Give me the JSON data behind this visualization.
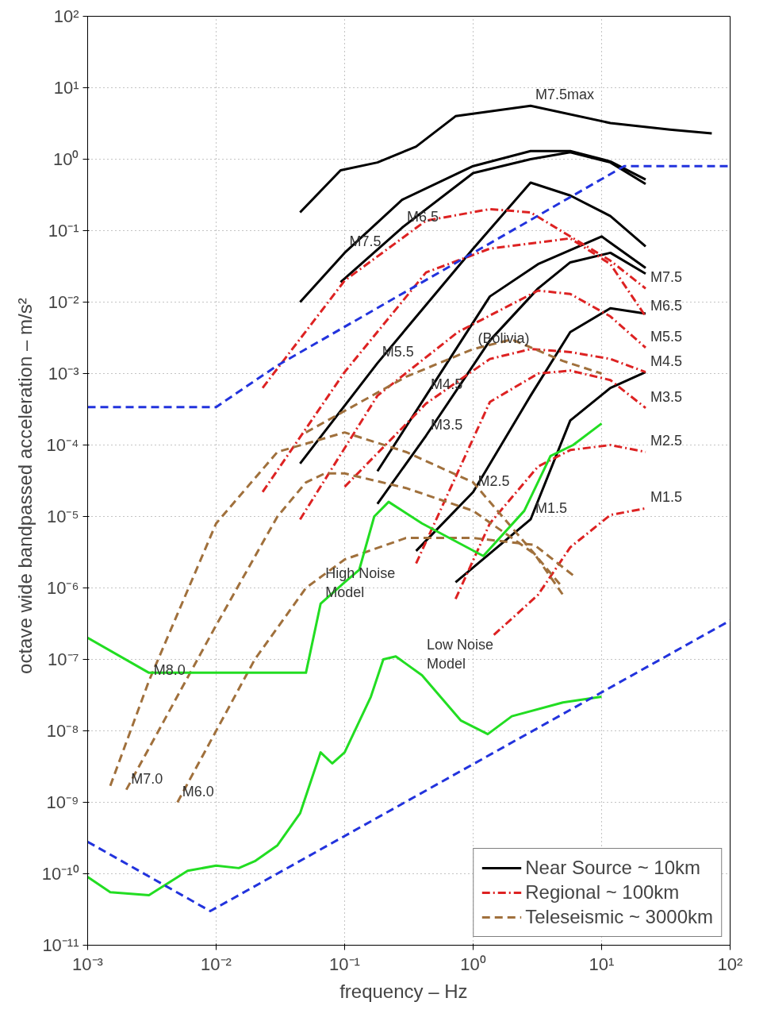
{
  "chart_data": {
    "type": "line",
    "xlabel": "frequency  –  Hz",
    "ylabel": "octave wide bandpassed acceleration  –  m/s²",
    "log": "xy",
    "grid": true,
    "legend": "bottom right",
    "marker": "none",
    "xlim": [
      0.001,
      100
    ],
    "ylim": [
      1e-11,
      100
    ],
    "xticks": [
      {
        "value": 0.001,
        "label": "10⁻³"
      },
      {
        "value": 0.01,
        "label": "10⁻²"
      },
      {
        "value": 0.1,
        "label": "10⁻¹"
      },
      {
        "value": 1,
        "label": "10⁰"
      },
      {
        "value": 10,
        "label": "10¹"
      },
      {
        "value": 100,
        "label": "10²"
      }
    ],
    "yticks": [
      {
        "value": 1e-11,
        "label": "10⁻¹¹"
      },
      {
        "value": 1e-10,
        "label": "10⁻¹⁰"
      },
      {
        "value": 1e-09,
        "label": "10⁻⁹"
      },
      {
        "value": 1e-08,
        "label": "10⁻⁸"
      },
      {
        "value": 1e-07,
        "label": "10⁻⁷"
      },
      {
        "value": 1e-06,
        "label": "10⁻⁶"
      },
      {
        "value": 1e-05,
        "label": "10⁻⁵"
      },
      {
        "value": 0.0001,
        "label": "10⁻⁴"
      },
      {
        "value": 0.001,
        "label": "10⁻³"
      },
      {
        "value": 0.01,
        "label": "10⁻²"
      },
      {
        "value": 0.1,
        "label": "10⁻¹"
      },
      {
        "value": 1,
        "label": "10⁰"
      },
      {
        "value": 10,
        "label": "10¹"
      },
      {
        "value": 100,
        "label": "10²"
      }
    ],
    "series": [
      {
        "name": "Near Source ~ 10km",
        "color": "#000000",
        "line_style": "solid",
        "x": [
          0.045,
          0.093,
          0.18,
          0.36,
          0.73,
          2.8,
          11.7,
          34,
          72
        ],
        "values": [
          0.18,
          0.7,
          0.9,
          1.5,
          4,
          5.6,
          3.2,
          2.6,
          2.3
        ]
      },
      {
        "color": "#000000",
        "line_style": "solid",
        "x": [
          0.045,
          0.1,
          0.28,
          1.0,
          2.8,
          5.7,
          11.7,
          22
        ],
        "values": [
          0.01,
          0.049,
          0.27,
          0.8,
          1.3,
          1.3,
          0.93,
          0.52
        ]
      },
      {
        "color": "#000000",
        "line_style": "solid",
        "x": [
          0.093,
          0.28,
          1.0,
          2.8,
          5.7,
          11.7,
          22
        ],
        "values": [
          0.019,
          0.11,
          0.64,
          1.0,
          1.25,
          0.9,
          0.45
        ]
      },
      {
        "color": "#000000",
        "line_style": "solid",
        "x": [
          0.045,
          0.18,
          1.0,
          2.8,
          5.7,
          11.7,
          22
        ],
        "values": [
          5.5e-05,
          0.0014,
          0.056,
          0.47,
          0.31,
          0.16,
          0.06
        ]
      },
      {
        "color": "#000000",
        "line_style": "solid",
        "x": [
          0.18,
          0.43,
          1.35,
          3.2,
          10,
          22
        ],
        "values": [
          4.3e-05,
          0.00049,
          0.012,
          0.034,
          0.083,
          0.03
        ]
      },
      {
        "color": "#000000",
        "line_style": "solid",
        "x": [
          0.18,
          0.43,
          1.35,
          3.2,
          5.7,
          11.7,
          22
        ],
        "values": [
          1.5e-05,
          0.000135,
          0.0029,
          0.0155,
          0.036,
          0.049,
          0.025
        ]
      },
      {
        "color": "#000000",
        "line_style": "solid",
        "x": [
          0.36,
          1.0,
          2.8,
          5.7,
          11.7,
          22
        ],
        "values": [
          3.3e-06,
          2.2e-05,
          0.00049,
          0.0038,
          0.0082,
          0.0069
        ]
      },
      {
        "color": "#000000",
        "line_style": "solid",
        "x": [
          0.73,
          2.8,
          5.7,
          11.7,
          22
        ],
        "values": [
          1.2e-06,
          9.1e-06,
          0.00022,
          0.00063,
          0.00105
        ]
      },
      {
        "name": "Regional ~ 100km",
        "color": "#dd2222",
        "line_style": "dashdot",
        "x": [
          0.023,
          0.1,
          0.43,
          1.35,
          2.8,
          5.7,
          11.7,
          22
        ],
        "values": [
          0.00063,
          0.02,
          0.138,
          0.2,
          0.18,
          0.083,
          0.038,
          0.0155
        ]
      },
      {
        "color": "#dd2222",
        "line_style": "dashdot",
        "x": [
          0.023,
          0.1,
          0.43,
          1.35,
          5.7,
          11.7,
          22
        ],
        "values": [
          2.2e-05,
          0.00105,
          0.026,
          0.056,
          0.078,
          0.034,
          0.0063
        ]
      },
      {
        "color": "#dd2222",
        "line_style": "dashdot",
        "x": [
          0.045,
          0.18,
          0.76,
          3.2,
          5.7,
          11.7,
          22
        ],
        "values": [
          9.1e-06,
          0.00049,
          0.0038,
          0.0145,
          0.013,
          0.0063,
          0.0023
        ]
      },
      {
        "color": "#dd2222",
        "line_style": "dashdot",
        "x": [
          0.1,
          0.43,
          1.35,
          2.8,
          5.7,
          11.7,
          22
        ],
        "values": [
          2.6e-05,
          0.00038,
          0.0016,
          0.0022,
          0.002,
          0.0016,
          0.00105
        ]
      },
      {
        "color": "#dd2222",
        "line_style": "dashdot",
        "x": [
          0.36,
          1.35,
          3.2,
          5.7,
          11.7,
          22
        ],
        "values": [
          2.2e-06,
          0.0004,
          0.001,
          0.0011,
          0.00081,
          0.00033
        ]
      },
      {
        "color": "#dd2222",
        "line_style": "dashdot",
        "x": [
          0.73,
          1.35,
          3.2,
          5.7,
          11.7,
          22
        ],
        "values": [
          7e-07,
          8e-06,
          5e-05,
          8.5e-05,
          0.0001,
          8e-05
        ]
      },
      {
        "color": "#dd2222",
        "line_style": "dashdot",
        "x": [
          1.45,
          3.2,
          5.7,
          11.7,
          22
        ],
        "values": [
          2.2e-07,
          8e-07,
          3.7e-06,
          1.05e-05,
          1.3e-05
        ]
      },
      {
        "name": "Teleseismic ~ 3000km",
        "color": "#a0703c",
        "line_style": "dashed",
        "x": [
          0.0015,
          0.003,
          0.01,
          0.03,
          0.1,
          0.3,
          1,
          3,
          5
        ],
        "values": [
          1.7e-09,
          5e-08,
          8e-06,
          8e-05,
          0.00015,
          8e-05,
          3e-05,
          3e-06,
          1e-06
        ]
      },
      {
        "color": "#a0703c",
        "line_style": "dashed",
        "x": [
          0.002,
          0.01,
          0.03,
          0.05,
          0.07,
          0.1,
          0.3,
          1,
          3,
          5
        ],
        "values": [
          1.5e-09,
          3e-07,
          1e-05,
          3e-05,
          4e-05,
          4e-05,
          2.5e-05,
          1.2e-05,
          3e-06,
          8e-07
        ]
      },
      {
        "color": "#a0703c",
        "line_style": "dashed",
        "x": [
          0.005,
          0.02,
          0.05,
          0.1,
          0.3,
          1,
          3,
          6
        ],
        "values": [
          1e-09,
          1e-07,
          1e-06,
          2.5e-06,
          5e-06,
          5e-06,
          4e-06,
          1.5e-06
        ]
      },
      {
        "color": "#a0703c",
        "line_style": "dashed",
        "x": [
          0.05,
          0.1,
          0.3,
          1,
          2,
          5,
          10
        ],
        "values": [
          0.00015,
          0.0003,
          0.0009,
          0.0022,
          0.003,
          0.0015,
          0.001
        ]
      },
      {
        "color": "#22dd22",
        "line_style": "solid",
        "x": [
          0.001,
          0.003,
          0.05,
          0.065,
          0.1,
          0.13,
          0.17,
          0.22,
          0.4,
          1.2,
          2.5,
          4,
          6,
          10
        ],
        "values": [
          2e-07,
          6.5e-08,
          6.5e-08,
          6e-07,
          1.2e-06,
          1.8e-06,
          1e-05,
          1.6e-05,
          8e-06,
          2.8e-06,
          1.2e-05,
          7e-05,
          0.0001,
          0.0002
        ]
      },
      {
        "color": "#22dd22",
        "line_style": "solid",
        "x": [
          0.001,
          0.0015,
          0.003,
          0.006,
          0.01,
          0.015,
          0.02,
          0.03,
          0.045,
          0.065,
          0.08,
          0.1,
          0.16,
          0.2,
          0.25,
          0.4,
          0.8,
          1.3,
          2,
          5,
          10
        ],
        "values": [
          9e-11,
          5.5e-11,
          5e-11,
          1.1e-10,
          1.3e-10,
          1.2e-10,
          1.5e-10,
          2.5e-10,
          7e-10,
          5e-09,
          3.5e-09,
          5e-09,
          3e-08,
          1e-07,
          1.1e-07,
          6e-08,
          1.4e-08,
          9e-09,
          1.6e-08,
          2.5e-08,
          3e-08
        ]
      },
      {
        "color": "#2233dd",
        "line_style": "dashed",
        "x": [
          0.001,
          0.01,
          0.03,
          15,
          100
        ],
        "values": [
          0.00034,
          0.00034,
          0.0013,
          0.8,
          0.8
        ]
      },
      {
        "color": "#2233dd",
        "line_style": "dashed",
        "x": [
          0.001,
          0.009,
          100
        ],
        "values": [
          2.8e-10,
          3e-11,
          3.5e-07
        ]
      }
    ],
    "annotations": [
      {
        "text": "M7.5max",
        "x": 2.8,
        "y": 5.6
      },
      {
        "text": "M7.5",
        "x": 0.1,
        "y": 0.049
      },
      {
        "text": "M6.5",
        "x": 0.28,
        "y": 0.11
      },
      {
        "text": "M5.5",
        "x": 0.18,
        "y": 0.0014
      },
      {
        "text": "M4.5",
        "x": 0.43,
        "y": 0.00049
      },
      {
        "text": "M3.5",
        "x": 0.43,
        "y": 0.000135
      },
      {
        "text": "M2.5",
        "x": 1.0,
        "y": 2.2e-05
      },
      {
        "text": "M1.5",
        "x": 2.8,
        "y": 9.1e-06
      },
      {
        "text": "M7.5",
        "x": 22,
        "y": 0.0155
      },
      {
        "text": "M6.5",
        "x": 22,
        "y": 0.0063
      },
      {
        "text": "M5.5",
        "x": 22,
        "y": 0.0023
      },
      {
        "text": "M4.5",
        "x": 22,
        "y": 0.00105
      },
      {
        "text": "M3.5",
        "x": 22,
        "y": 0.00033
      },
      {
        "text": "M2.5",
        "x": 22,
        "y": 8e-05
      },
      {
        "text": "M1.5",
        "x": 22,
        "y": 1.3e-05
      },
      {
        "text": "M8.0",
        "x": 0.003,
        "y": 5e-08
      },
      {
        "text": "M7.0",
        "x": 0.002,
        "y": 1.5e-09
      },
      {
        "text": "M6.0",
        "x": 0.005,
        "y": 1e-09
      },
      {
        "text": "(Bolivia)",
        "x": 1,
        "y": 0.0022
      },
      {
        "text": "High Noise\nModel",
        "x": 0.065,
        "y": 6e-07
      },
      {
        "text": "Low Noise\nModel",
        "x": 0.4,
        "y": 6e-08
      }
    ]
  }
}
